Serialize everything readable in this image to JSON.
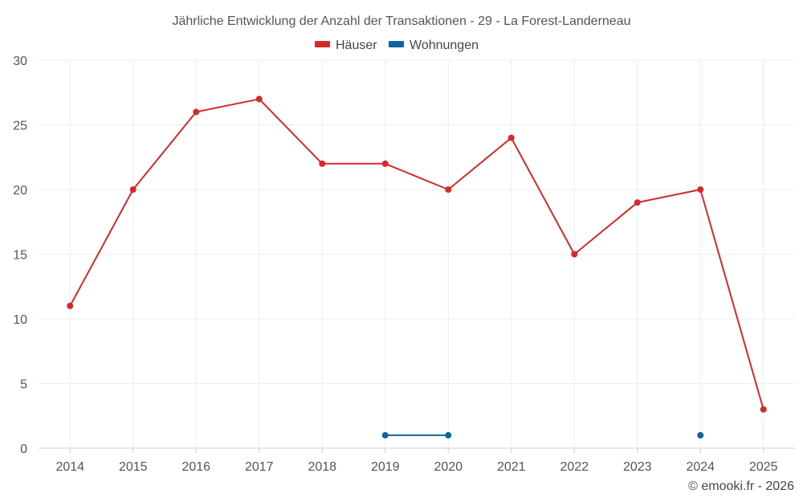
{
  "chart_data": {
    "type": "line",
    "title": "Jährliche Entwicklung der Anzahl der Transaktionen - 29 - La Forest-Landerneau",
    "categories": [
      "2014",
      "2015",
      "2016",
      "2017",
      "2018",
      "2019",
      "2020",
      "2021",
      "2022",
      "2023",
      "2024",
      "2025"
    ],
    "ylim": [
      0,
      30
    ],
    "yticks": [
      "0",
      "5",
      "10",
      "15",
      "20",
      "25",
      "30"
    ],
    "grid": true,
    "legend_position": "top-center",
    "series": [
      {
        "name": "Häuser",
        "color": "#d42a2a",
        "values": [
          11,
          20,
          26,
          27,
          22,
          22,
          20,
          24,
          15,
          19,
          20,
          3
        ]
      },
      {
        "name": "Wohnungen",
        "color": "#0f64a0",
        "values": [
          null,
          null,
          null,
          null,
          null,
          1,
          1,
          null,
          null,
          null,
          1,
          null
        ]
      }
    ]
  },
  "credit": "© emooki.fr - 2026"
}
